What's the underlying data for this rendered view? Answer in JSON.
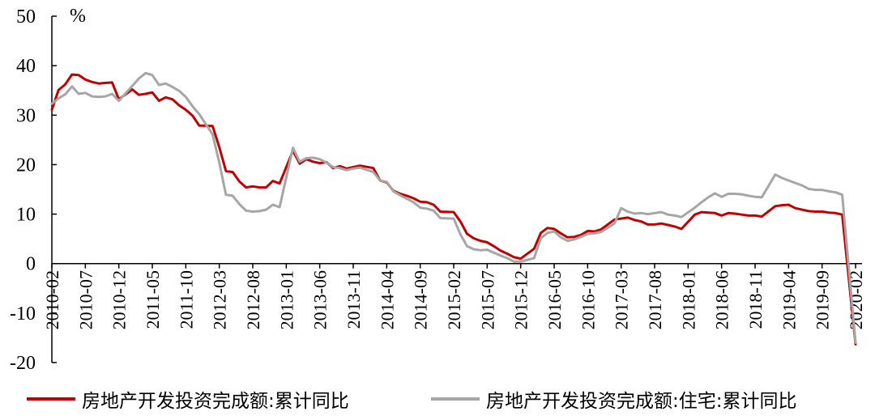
{
  "chart_data": {
    "type": "line",
    "unit_label": "%",
    "ylim": [
      -20,
      50
    ],
    "yticks": [
      -20,
      -10,
      0,
      10,
      20,
      30,
      40,
      50
    ],
    "xlim": [
      "2010-02",
      "2020-02"
    ],
    "xticks": [
      "2010-02",
      "2010-07",
      "2010-12",
      "2011-05",
      "2011-10",
      "2012-03",
      "2012-08",
      "2013-01",
      "2013-06",
      "2013-11",
      "2014-04",
      "2014-09",
      "2015-02",
      "2015-07",
      "2015-12",
      "2016-05",
      "2016-10",
      "2017-03",
      "2017-08",
      "2018-01",
      "2018-06",
      "2018-11",
      "2019-04",
      "2019-09",
      "2020-02"
    ],
    "grid": false,
    "legend_position": "bottom",
    "series": [
      {
        "name": "房地产开发投资完成额:累计同比",
        "color": "#C00000",
        "points": [
          [
            "2010-02",
            31.1
          ],
          [
            "2010-03",
            35.1
          ],
          [
            "2010-04",
            36.2
          ],
          [
            "2010-05",
            38.2
          ],
          [
            "2010-06",
            38.1
          ],
          [
            "2010-07",
            37.2
          ],
          [
            "2010-08",
            36.7
          ],
          [
            "2010-09",
            36.4
          ],
          [
            "2010-10",
            36.5
          ],
          [
            "2010-11",
            36.6
          ],
          [
            "2010-12",
            33.2
          ],
          [
            "2011-02",
            35.2
          ],
          [
            "2011-03",
            34.1
          ],
          [
            "2011-04",
            34.3
          ],
          [
            "2011-05",
            34.6
          ],
          [
            "2011-06",
            32.9
          ],
          [
            "2011-07",
            33.6
          ],
          [
            "2011-08",
            33.2
          ],
          [
            "2011-09",
            32.0
          ],
          [
            "2011-10",
            31.1
          ],
          [
            "2011-11",
            29.9
          ],
          [
            "2011-12",
            27.9
          ],
          [
            "2012-02",
            27.8
          ],
          [
            "2012-03",
            23.5
          ],
          [
            "2012-04",
            18.7
          ],
          [
            "2012-05",
            18.5
          ],
          [
            "2012-06",
            16.6
          ],
          [
            "2012-07",
            15.4
          ],
          [
            "2012-08",
            15.6
          ],
          [
            "2012-09",
            15.4
          ],
          [
            "2012-10",
            15.4
          ],
          [
            "2012-11",
            16.7
          ],
          [
            "2012-12",
            16.2
          ],
          [
            "2013-02",
            22.8
          ],
          [
            "2013-03",
            20.2
          ],
          [
            "2013-04",
            21.1
          ],
          [
            "2013-05",
            20.6
          ],
          [
            "2013-06",
            20.3
          ],
          [
            "2013-07",
            20.5
          ],
          [
            "2013-08",
            19.3
          ],
          [
            "2013-09",
            19.7
          ],
          [
            "2013-10",
            19.2
          ],
          [
            "2013-11",
            19.5
          ],
          [
            "2013-12",
            19.8
          ],
          [
            "2014-02",
            19.3
          ],
          [
            "2014-03",
            16.8
          ],
          [
            "2014-04",
            16.4
          ],
          [
            "2014-05",
            14.7
          ],
          [
            "2014-06",
            14.1
          ],
          [
            "2014-07",
            13.7
          ],
          [
            "2014-08",
            13.2
          ],
          [
            "2014-09",
            12.5
          ],
          [
            "2014-10",
            12.4
          ],
          [
            "2014-11",
            11.9
          ],
          [
            "2014-12",
            10.5
          ],
          [
            "2015-02",
            10.4
          ],
          [
            "2015-03",
            8.5
          ],
          [
            "2015-04",
            6.0
          ],
          [
            "2015-05",
            5.1
          ],
          [
            "2015-06",
            4.6
          ],
          [
            "2015-07",
            4.3
          ],
          [
            "2015-08",
            3.5
          ],
          [
            "2015-09",
            2.6
          ],
          [
            "2015-10",
            2.0
          ],
          [
            "2015-11",
            1.3
          ],
          [
            "2015-12",
            1.0
          ],
          [
            "2016-02",
            3.0
          ],
          [
            "2016-03",
            6.2
          ],
          [
            "2016-04",
            7.2
          ],
          [
            "2016-05",
            7.0
          ],
          [
            "2016-06",
            6.1
          ],
          [
            "2016-07",
            5.3
          ],
          [
            "2016-08",
            5.4
          ],
          [
            "2016-09",
            5.8
          ],
          [
            "2016-10",
            6.6
          ],
          [
            "2016-11",
            6.5
          ],
          [
            "2016-12",
            6.9
          ],
          [
            "2017-02",
            8.9
          ],
          [
            "2017-03",
            9.1
          ],
          [
            "2017-04",
            9.3
          ],
          [
            "2017-05",
            8.8
          ],
          [
            "2017-06",
            8.5
          ],
          [
            "2017-07",
            7.9
          ],
          [
            "2017-08",
            7.9
          ],
          [
            "2017-09",
            8.1
          ],
          [
            "2017-10",
            7.8
          ],
          [
            "2017-11",
            7.5
          ],
          [
            "2017-12",
            7.0
          ],
          [
            "2018-02",
            9.9
          ],
          [
            "2018-03",
            10.4
          ],
          [
            "2018-04",
            10.3
          ],
          [
            "2018-05",
            10.2
          ],
          [
            "2018-06",
            9.7
          ],
          [
            "2018-07",
            10.2
          ],
          [
            "2018-08",
            10.1
          ],
          [
            "2018-09",
            9.9
          ],
          [
            "2018-10",
            9.7
          ],
          [
            "2018-11",
            9.7
          ],
          [
            "2018-12",
            9.5
          ],
          [
            "2019-02",
            11.6
          ],
          [
            "2019-03",
            11.8
          ],
          [
            "2019-04",
            11.9
          ],
          [
            "2019-05",
            11.2
          ],
          [
            "2019-06",
            10.9
          ],
          [
            "2019-07",
            10.6
          ],
          [
            "2019-08",
            10.5
          ],
          [
            "2019-09",
            10.5
          ],
          [
            "2019-10",
            10.3
          ],
          [
            "2019-11",
            10.2
          ],
          [
            "2019-12",
            9.9
          ],
          [
            "2020-02",
            -16.3
          ]
        ]
      },
      {
        "name": "房地产开发投资完成额:住宅:累计同比",
        "color": "#A6A6A6",
        "points": [
          [
            "2010-02",
            32.3
          ],
          [
            "2010-03",
            33.4
          ],
          [
            "2010-04",
            34.2
          ],
          [
            "2010-05",
            35.8
          ],
          [
            "2010-06",
            34.3
          ],
          [
            "2010-07",
            34.5
          ],
          [
            "2010-08",
            33.8
          ],
          [
            "2010-09",
            33.7
          ],
          [
            "2010-10",
            33.8
          ],
          [
            "2010-11",
            34.3
          ],
          [
            "2010-12",
            32.9
          ],
          [
            "2011-02",
            35.9
          ],
          [
            "2011-03",
            37.4
          ],
          [
            "2011-04",
            38.5
          ],
          [
            "2011-05",
            38.1
          ],
          [
            "2011-06",
            36.1
          ],
          [
            "2011-07",
            36.4
          ],
          [
            "2011-08",
            35.7
          ],
          [
            "2011-09",
            34.9
          ],
          [
            "2011-10",
            33.7
          ],
          [
            "2011-11",
            31.8
          ],
          [
            "2011-12",
            30.2
          ],
          [
            "2012-02",
            26.1
          ],
          [
            "2012-03",
            20.4
          ],
          [
            "2012-04",
            13.9
          ],
          [
            "2012-05",
            13.7
          ],
          [
            "2012-06",
            12.0
          ],
          [
            "2012-07",
            10.7
          ],
          [
            "2012-08",
            10.5
          ],
          [
            "2012-09",
            10.6
          ],
          [
            "2012-10",
            10.9
          ],
          [
            "2012-11",
            11.9
          ],
          [
            "2012-12",
            11.4
          ],
          [
            "2013-02",
            23.4
          ],
          [
            "2013-03",
            20.6
          ],
          [
            "2013-04",
            21.3
          ],
          [
            "2013-05",
            21.4
          ],
          [
            "2013-06",
            21.1
          ],
          [
            "2013-07",
            20.4
          ],
          [
            "2013-08",
            19.5
          ],
          [
            "2013-09",
            19.3
          ],
          [
            "2013-10",
            18.9
          ],
          [
            "2013-11",
            19.2
          ],
          [
            "2013-12",
            19.4
          ],
          [
            "2014-02",
            18.5
          ],
          [
            "2014-03",
            16.8
          ],
          [
            "2014-04",
            16.5
          ],
          [
            "2014-05",
            14.6
          ],
          [
            "2014-06",
            13.8
          ],
          [
            "2014-07",
            13.1
          ],
          [
            "2014-08",
            12.4
          ],
          [
            "2014-09",
            11.3
          ],
          [
            "2014-10",
            11.1
          ],
          [
            "2014-11",
            10.7
          ],
          [
            "2014-12",
            9.2
          ],
          [
            "2015-02",
            9.1
          ],
          [
            "2015-03",
            5.9
          ],
          [
            "2015-04",
            3.5
          ],
          [
            "2015-05",
            2.9
          ],
          [
            "2015-06",
            2.7
          ],
          [
            "2015-07",
            2.8
          ],
          [
            "2015-08",
            2.2
          ],
          [
            "2015-09",
            1.6
          ],
          [
            "2015-10",
            1.1
          ],
          [
            "2015-11",
            0.4
          ],
          [
            "2015-12",
            0.4
          ],
          [
            "2016-02",
            1.1
          ],
          [
            "2016-03",
            5.1
          ],
          [
            "2016-04",
            6.2
          ],
          [
            "2016-05",
            6.5
          ],
          [
            "2016-06",
            5.3
          ],
          [
            "2016-07",
            4.6
          ],
          [
            "2016-08",
            4.9
          ],
          [
            "2016-09",
            5.4
          ],
          [
            "2016-10",
            6.0
          ],
          [
            "2016-11",
            6.1
          ],
          [
            "2016-12",
            6.4
          ],
          [
            "2017-02",
            8.1
          ],
          [
            "2017-03",
            11.2
          ],
          [
            "2017-04",
            10.5
          ],
          [
            "2017-05",
            10.1
          ],
          [
            "2017-06",
            10.2
          ],
          [
            "2017-07",
            10.0
          ],
          [
            "2017-08",
            10.2
          ],
          [
            "2017-09",
            10.4
          ],
          [
            "2017-10",
            9.9
          ],
          [
            "2017-11",
            9.7
          ],
          [
            "2017-12",
            9.4
          ],
          [
            "2018-02",
            11.3
          ],
          [
            "2018-03",
            12.4
          ],
          [
            "2018-04",
            13.4
          ],
          [
            "2018-05",
            14.2
          ],
          [
            "2018-06",
            13.5
          ],
          [
            "2018-07",
            14.1
          ],
          [
            "2018-08",
            14.1
          ],
          [
            "2018-09",
            14.0
          ],
          [
            "2018-10",
            13.7
          ],
          [
            "2018-11",
            13.5
          ],
          [
            "2018-12",
            13.4
          ],
          [
            "2019-02",
            18.0
          ],
          [
            "2019-03",
            17.3
          ],
          [
            "2019-04",
            16.8
          ],
          [
            "2019-05",
            16.3
          ],
          [
            "2019-06",
            15.8
          ],
          [
            "2019-07",
            15.1
          ],
          [
            "2019-08",
            14.9
          ],
          [
            "2019-09",
            14.9
          ],
          [
            "2019-10",
            14.6
          ],
          [
            "2019-11",
            14.4
          ],
          [
            "2019-12",
            13.9
          ],
          [
            "2020-02",
            -16.0
          ]
        ]
      }
    ]
  }
}
